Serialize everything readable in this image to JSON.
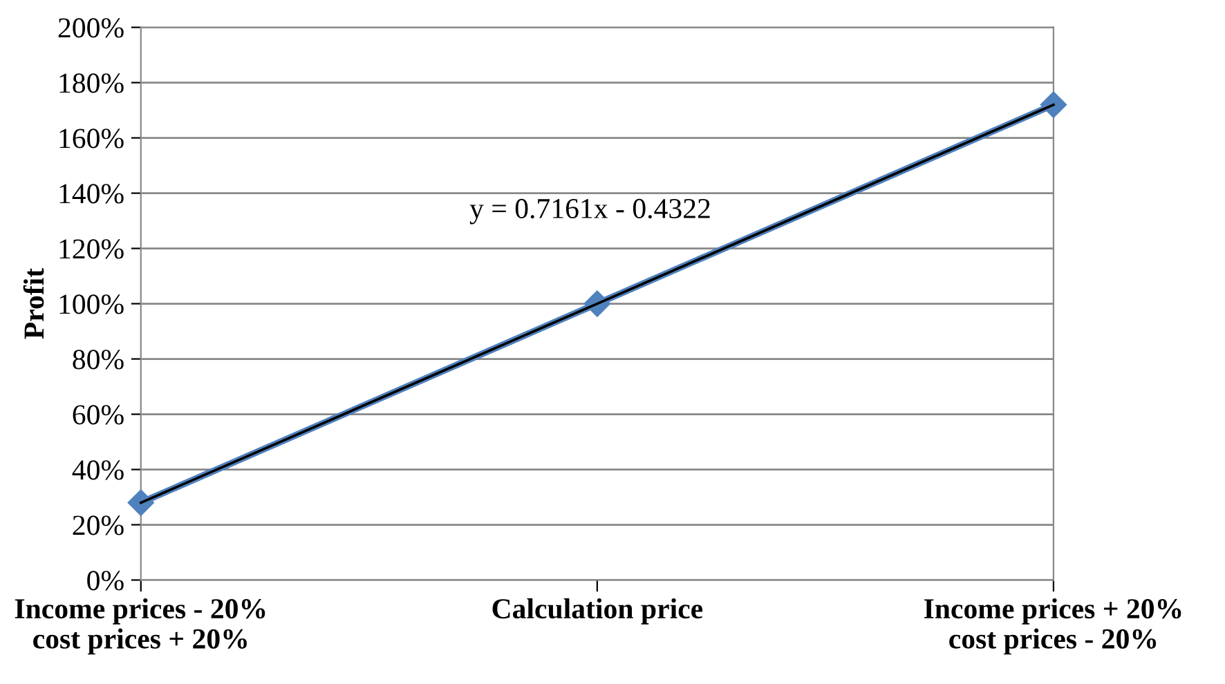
{
  "chart_data": {
    "type": "line",
    "ylabel": "Profit",
    "categories": [
      "Income prices - 20%\ncost prices + 20%",
      "Calculation price",
      "Income prices + 20%\ncost prices - 20%"
    ],
    "series": [
      {
        "color": "#4f81bd",
        "values": [
          28,
          100,
          172
        ],
        "marker": "diamond"
      },
      {
        "color": "#000000",
        "values": [
          28,
          100,
          172
        ],
        "marker": "none"
      }
    ],
    "ylim": [
      0,
      200
    ],
    "yticks": [
      {
        "value": 0,
        "label": "0%"
      },
      {
        "value": 20,
        "label": "20%"
      },
      {
        "value": 40,
        "label": "40%"
      },
      {
        "value": 60,
        "label": "60%"
      },
      {
        "value": 80,
        "label": "80%"
      },
      {
        "value": 100,
        "label": "100%"
      },
      {
        "value": 120,
        "label": "120%"
      },
      {
        "value": 140,
        "label": "140%"
      },
      {
        "value": 160,
        "label": "160%"
      },
      {
        "value": 180,
        "label": "180%"
      },
      {
        "value": 200,
        "label": "200%"
      }
    ],
    "grid": "y",
    "legend": false,
    "line_style": "solid",
    "annotations": [
      "y = 0.7161x - 0.4322"
    ]
  }
}
